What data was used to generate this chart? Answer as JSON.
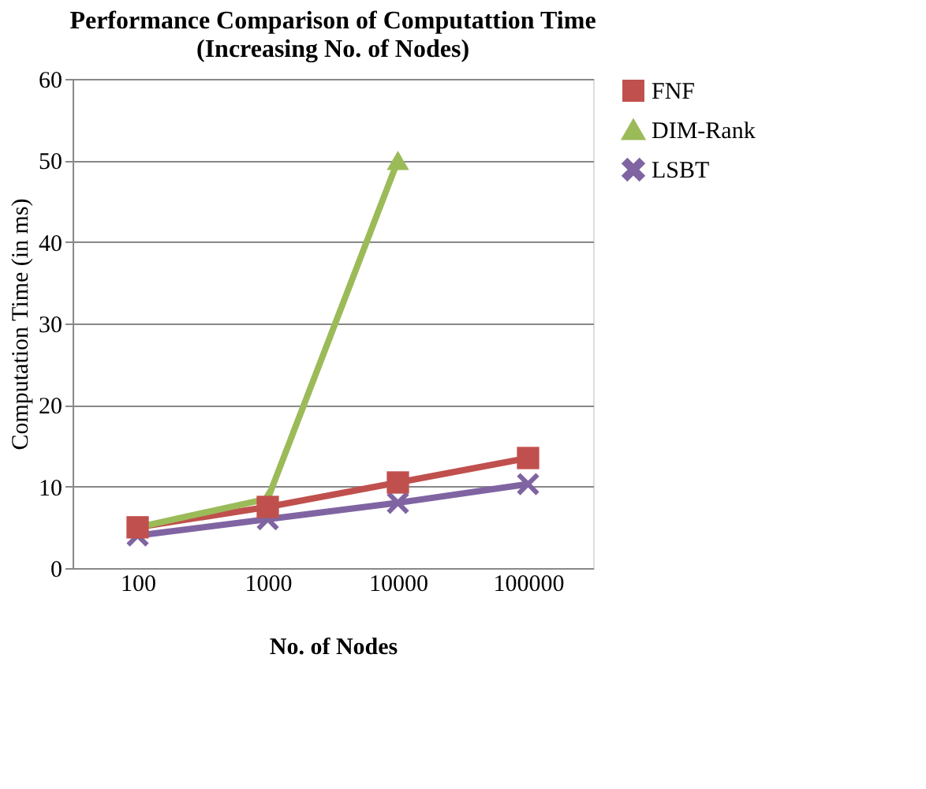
{
  "chart_data": {
    "type": "line",
    "title": [
      "Performance Comparison of Computattion Time",
      "(Increasing No. of Nodes)"
    ],
    "xlabel": "No. of Nodes",
    "ylabel": "Computation Time (in ms)",
    "categories": [
      "100",
      "1000",
      "10000",
      "100000"
    ],
    "series": [
      {
        "name": "FNF",
        "color": "#c0504d",
        "marker": "square",
        "values": [
          5,
          7.5,
          10.5,
          13.5
        ]
      },
      {
        "name": "DIM-Rank",
        "color": "#9bbb59",
        "marker": "triangle",
        "values": [
          5,
          8.5,
          50,
          null
        ]
      },
      {
        "name": "LSBT",
        "color": "#8064a2",
        "marker": "cross",
        "values": [
          4,
          6,
          8,
          10.3
        ]
      }
    ],
    "ylim": [
      0,
      60
    ],
    "yticks": [
      0,
      10,
      20,
      30,
      40,
      50,
      60
    ],
    "grid": "y",
    "legend": "right",
    "line_style": "solid"
  }
}
